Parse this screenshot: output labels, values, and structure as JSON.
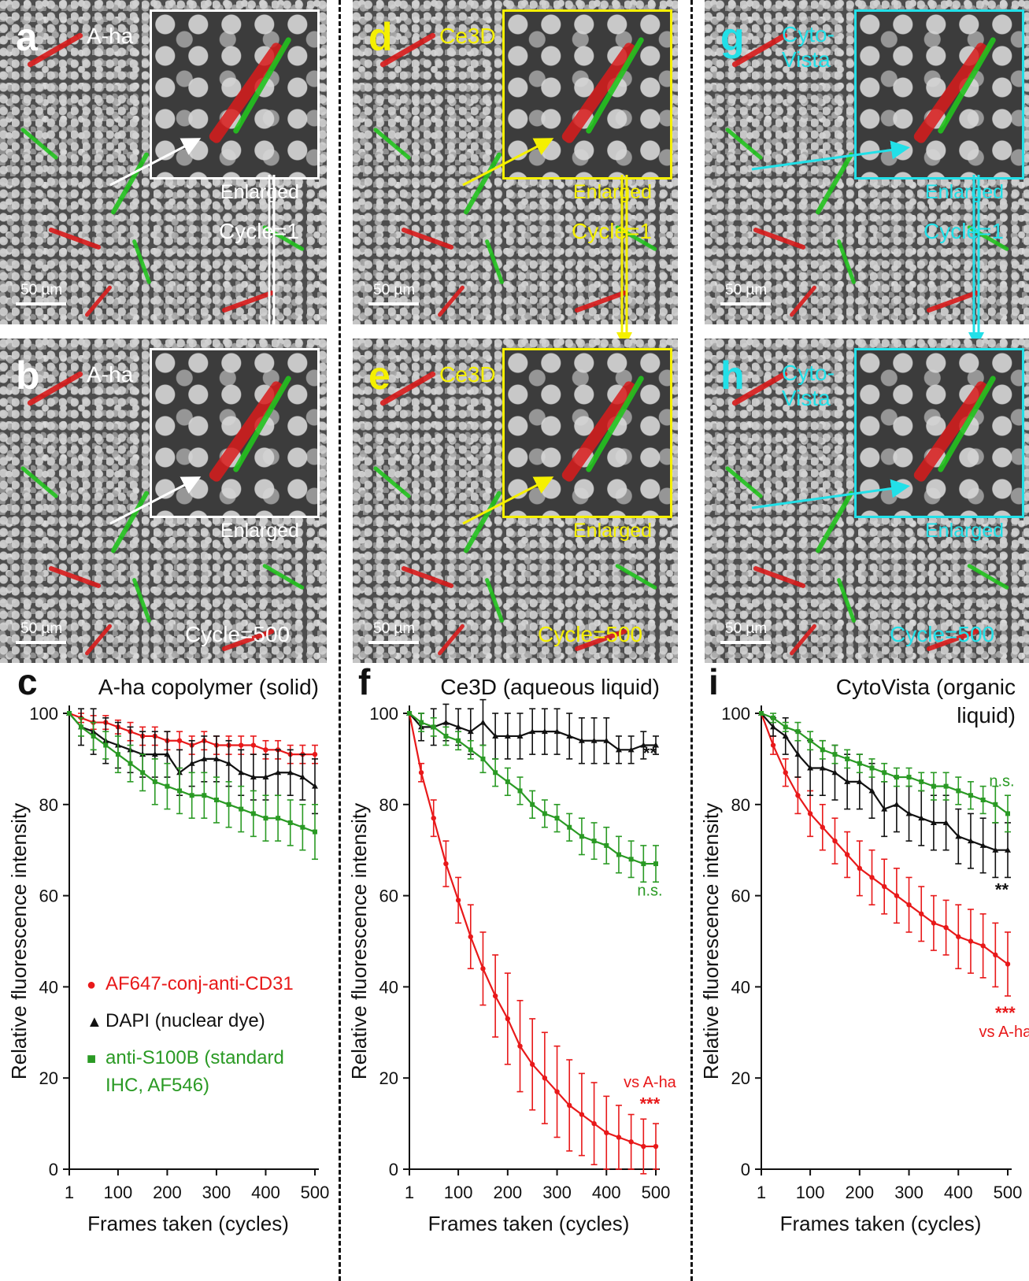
{
  "colors": {
    "red": "#e8191a",
    "black": "#111111",
    "green": "#2a9a24",
    "yellow": "#f5f000",
    "cyan": "#22e0e8",
    "white": "#ffffff"
  },
  "image_panels": [
    {
      "letter": "a",
      "method": "A-ha",
      "enlarged": "Enlarged",
      "cycle": "Cycle=1",
      "scale": "50 µm",
      "accent": "white"
    },
    {
      "letter": "b",
      "method": "A-ha",
      "enlarged": "Enlarged",
      "cycle": "Cycle=500",
      "scale": "50 µm",
      "accent": "white"
    },
    {
      "letter": "d",
      "method": "Ce3D",
      "enlarged": "Enlarged",
      "cycle": "Cycle=1",
      "scale": "50 µm",
      "accent": "yellow"
    },
    {
      "letter": "e",
      "method": "Ce3D",
      "enlarged": "Enlarged",
      "cycle": "Cycle=500",
      "scale": "50 µm",
      "accent": "yellow"
    },
    {
      "letter": "g",
      "method": "Cyto-\nVista",
      "enlarged": "Enlarged",
      "cycle": "Cycle=1",
      "scale": "50 µm",
      "accent": "cyan"
    },
    {
      "letter": "h",
      "method": "Cyto-\nVista",
      "enlarged": "Enlarged",
      "cycle": "Cycle=500",
      "scale": "50 µm",
      "accent": "cyan"
    }
  ],
  "legend": [
    {
      "marker": "●",
      "label": "AF647-conj-anti-CD31",
      "color": "red"
    },
    {
      "marker": "▲",
      "label": "DAPI (nuclear dye)",
      "color": "black"
    },
    {
      "marker": "■",
      "label": "anti-S100B (standard",
      "label2": "IHC, AF546)",
      "color": "green"
    }
  ],
  "chart_data": [
    {
      "type": "line",
      "panel": "c",
      "title": "A-ha copolymer (solid)",
      "xlabel": "Frames taken (cycles)",
      "ylabel": "Relative fluorescence intensity",
      "xlim": [
        1,
        500
      ],
      "ylim": [
        0,
        100
      ],
      "xticks": [
        1,
        100,
        200,
        300,
        400,
        500
      ],
      "yticks": [
        0,
        20,
        40,
        60,
        80,
        100
      ],
      "x": [
        1,
        25,
        50,
        75,
        100,
        125,
        150,
        175,
        200,
        225,
        250,
        275,
        300,
        325,
        350,
        375,
        400,
        425,
        450,
        475,
        500
      ],
      "series": [
        {
          "name": "AF647-conj-anti-CD31",
          "color": "red",
          "marker": "circle",
          "values": [
            100,
            99,
            98,
            98,
            97,
            96,
            95,
            95,
            94,
            94,
            93,
            94,
            93,
            93,
            93,
            93,
            92,
            92,
            91,
            91,
            91
          ],
          "errors": [
            0,
            1,
            1.5,
            1.5,
            1.5,
            2,
            2,
            2,
            2,
            2,
            2,
            2,
            2,
            2,
            2,
            2,
            2,
            2,
            2,
            2,
            2
          ]
        },
        {
          "name": "DAPI (nuclear dye)",
          "color": "black",
          "marker": "triangle",
          "values": [
            100,
            97,
            96,
            94,
            93,
            92,
            91,
            91,
            91,
            87,
            89,
            90,
            90,
            89,
            87,
            86,
            86,
            87,
            87,
            86,
            84
          ],
          "errors": [
            0,
            4,
            5,
            5,
            5,
            5,
            5,
            5,
            5,
            5,
            5,
            5,
            5,
            5,
            5,
            5,
            5,
            5,
            5,
            5,
            6
          ]
        },
        {
          "name": "anti-S100B (standard IHC, AF546)",
          "color": "green",
          "marker": "square",
          "values": [
            100,
            97,
            95,
            93,
            91,
            89,
            87,
            85,
            84,
            83,
            82,
            82,
            81,
            80,
            79,
            78,
            77,
            77,
            76,
            75,
            74
          ],
          "errors": [
            0,
            2,
            3,
            3,
            4,
            4,
            4,
            5,
            5,
            5,
            5,
            5,
            5,
            5,
            5,
            5,
            5,
            5,
            5,
            5,
            6
          ]
        }
      ],
      "annotations": []
    },
    {
      "type": "line",
      "panel": "f",
      "title": "Ce3D (aqueous liquid)",
      "xlabel": "Frames taken (cycles)",
      "ylabel": "Relative fluorescence intensity",
      "xlim": [
        1,
        500
      ],
      "ylim": [
        0,
        100
      ],
      "xticks": [
        1,
        100,
        200,
        300,
        400,
        500
      ],
      "yticks": [
        0,
        20,
        40,
        60,
        80,
        100
      ],
      "x": [
        1,
        25,
        50,
        75,
        100,
        125,
        150,
        175,
        200,
        225,
        250,
        275,
        300,
        325,
        350,
        375,
        400,
        425,
        450,
        475,
        500
      ],
      "series": [
        {
          "name": "AF647-conj-anti-CD31",
          "color": "red",
          "marker": "circle",
          "values": [
            100,
            87,
            77,
            67,
            59,
            51,
            44,
            38,
            33,
            27,
            23,
            20,
            17,
            14,
            12,
            10,
            8,
            7,
            6,
            5,
            5
          ],
          "errors": [
            0,
            2,
            4,
            5,
            5,
            7,
            8,
            9,
            10,
            10,
            10,
            10,
            10,
            10,
            9,
            9,
            8,
            7,
            6,
            6,
            5
          ]
        },
        {
          "name": "DAPI (nuclear dye)",
          "color": "black",
          "marker": "triangle",
          "values": [
            100,
            97,
            97,
            98,
            97,
            96,
            98,
            95,
            95,
            95,
            96,
            96,
            96,
            95,
            94,
            94,
            94,
            92,
            92,
            93,
            93
          ],
          "errors": [
            0,
            3,
            4,
            4,
            4,
            5,
            5,
            5,
            5,
            5,
            5,
            5,
            5,
            5,
            5,
            5,
            5,
            3,
            3,
            3,
            2
          ]
        },
        {
          "name": "anti-S100B (standard IHC, AF546)",
          "color": "green",
          "marker": "square",
          "values": [
            100,
            98,
            97,
            95,
            94,
            92,
            90,
            87,
            85,
            83,
            80,
            78,
            77,
            75,
            73,
            72,
            71,
            69,
            68,
            67,
            67
          ],
          "errors": [
            0,
            2,
            2,
            2,
            2,
            2,
            3,
            3,
            3,
            3,
            3,
            3,
            3,
            3,
            4,
            4,
            4,
            4,
            4,
            4,
            4
          ]
        }
      ],
      "annotations": [
        {
          "text": "**",
          "color": "black",
          "x": 488,
          "y": 90
        },
        {
          "text": "n.s.",
          "color": "green",
          "x": 488,
          "y": 60
        },
        {
          "text": "vs A-ha",
          "color": "red",
          "x": 488,
          "y": 18
        },
        {
          "text": "***",
          "color": "red",
          "x": 488,
          "y": 13
        }
      ]
    },
    {
      "type": "line",
      "panel": "i",
      "title": "CytoVista (organic",
      "title2": "liquid)",
      "xlabel": "Frames taken (cycles)",
      "ylabel": "Relative fluorescence intensity",
      "xlim": [
        1,
        500
      ],
      "ylim": [
        0,
        100
      ],
      "xticks": [
        1,
        100,
        200,
        300,
        400,
        500
      ],
      "yticks": [
        0,
        20,
        40,
        60,
        80,
        100
      ],
      "x": [
        1,
        25,
        50,
        75,
        100,
        125,
        150,
        175,
        200,
        225,
        250,
        275,
        300,
        325,
        350,
        375,
        400,
        425,
        450,
        475,
        500
      ],
      "series": [
        {
          "name": "AF647-conj-anti-CD31",
          "color": "red",
          "marker": "circle",
          "values": [
            100,
            93,
            87,
            82,
            78,
            75,
            72,
            69,
            66,
            64,
            62,
            60,
            58,
            56,
            54,
            53,
            51,
            50,
            49,
            47,
            45
          ],
          "errors": [
            0,
            2,
            3,
            4,
            5,
            5,
            5,
            5,
            6,
            6,
            6,
            6,
            6,
            6,
            6,
            6,
            7,
            7,
            7,
            7,
            7
          ]
        },
        {
          "name": "DAPI (nuclear dye)",
          "color": "black",
          "marker": "triangle",
          "values": [
            100,
            97,
            95,
            91,
            88,
            88,
            87,
            85,
            85,
            83,
            79,
            80,
            78,
            77,
            76,
            76,
            73,
            72,
            71,
            70,
            70
          ],
          "errors": [
            0,
            2,
            4,
            5,
            6,
            6,
            6,
            6,
            6,
            6,
            6,
            6,
            6,
            6,
            6,
            6,
            6,
            6,
            6,
            6,
            6
          ]
        },
        {
          "name": "anti-S100B (standard IHC, AF546)",
          "color": "green",
          "marker": "square",
          "values": [
            100,
            99,
            97,
            96,
            94,
            92,
            91,
            90,
            89,
            88,
            87,
            86,
            86,
            85,
            84,
            84,
            83,
            82,
            81,
            80,
            78
          ],
          "errors": [
            0,
            1,
            1,
            2,
            2,
            2,
            2,
            2,
            2,
            2,
            2,
            2,
            2,
            2,
            3,
            3,
            3,
            3,
            3,
            4,
            4
          ]
        }
      ],
      "annotations": [
        {
          "text": "n.s.",
          "color": "green",
          "x": 488,
          "y": 84
        },
        {
          "text": "**",
          "color": "black",
          "x": 488,
          "y": 60
        },
        {
          "text": "***",
          "color": "red",
          "x": 495,
          "y": 33
        },
        {
          "text": "vs A-ha",
          "color": "red",
          "x": 495,
          "y": 29
        }
      ]
    }
  ]
}
